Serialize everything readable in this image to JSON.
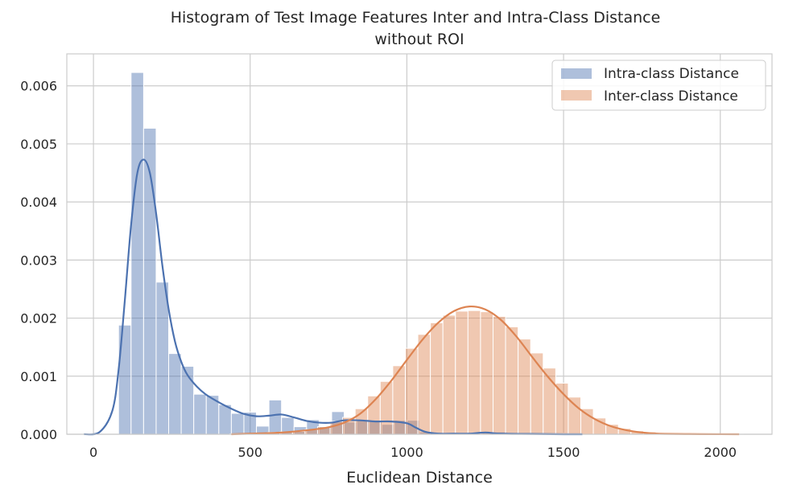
{
  "chart_data": {
    "type": "histogram",
    "title": "Histogram of Test Image Features Inter and Intra-Class Distance",
    "subtitle": "without ROI",
    "xlabel": "Euclidean Distance",
    "ylabel": "",
    "xlim": [
      -85,
      2165
    ],
    "ylim": [
      0,
      0.00655
    ],
    "x_ticks": [
      0,
      500,
      1000,
      1500,
      2000
    ],
    "x_tick_labels": [
      "0",
      "500",
      "1000",
      "1500",
      "2000"
    ],
    "y_ticks": [
      0.0,
      0.001,
      0.002,
      0.003,
      0.004,
      0.005,
      0.006
    ],
    "y_tick_labels": [
      "0.000",
      "0.001",
      "0.002",
      "0.003",
      "0.004",
      "0.005",
      "0.006"
    ],
    "grid": true,
    "legend_position": "top-right",
    "series": [
      {
        "name": "Intra-class Distance",
        "color": "#4c72b0",
        "bin_edges": [
          80,
          120,
          160,
          200,
          240,
          280,
          320,
          360,
          400,
          440,
          480,
          520,
          560,
          600,
          640,
          680,
          720,
          760,
          800,
          840,
          880,
          920,
          960,
          1000,
          1040,
          1080,
          1120,
          1160,
          1200,
          1240,
          1280,
          1320,
          1360,
          1400,
          1440,
          1480,
          1520,
          1560
        ],
        "density": [
          0.00188,
          0.00623,
          0.00527,
          0.00262,
          0.00139,
          0.00117,
          0.00069,
          0.00067,
          0.00051,
          0.00036,
          0.00038,
          0.00014,
          0.00059,
          0.00029,
          0.00013,
          0.00025,
          0.00013,
          0.00039,
          0.00021,
          0.00024,
          0.00024,
          0.00017,
          0.00024,
          0.00024,
          4e-05,
          3e-05,
          2e-05,
          2e-05,
          2e-05,
          2e-05,
          4e-05,
          2e-05,
          2e-05,
          1e-05,
          1e-05,
          2e-05,
          1e-05
        ],
        "kde": {
          "x": [
            -30,
            20,
            60,
            80,
            100,
            120,
            140,
            160,
            180,
            200,
            220,
            240,
            260,
            280,
            300,
            330,
            360,
            400,
            440,
            480,
            520,
            560,
            600,
            640,
            680,
            720,
            760,
            800,
            850,
            900,
            950,
            1000,
            1030,
            1060,
            1100,
            1150,
            1200,
            1250,
            1300,
            1400,
            1500,
            1560
          ],
          "y": [
            0.0,
            4e-05,
            0.0004,
            0.0011,
            0.0023,
            0.0036,
            0.0045,
            0.00473,
            0.0045,
            0.0038,
            0.0029,
            0.00215,
            0.0016,
            0.00125,
            0.00102,
            0.00082,
            0.00068,
            0.00055,
            0.00044,
            0.00035,
            0.00031,
            0.00032,
            0.00034,
            0.00029,
            0.00023,
            0.0002,
            0.0002,
            0.00024,
            0.00024,
            0.00022,
            0.00022,
            0.00019,
            0.00011,
            4e-05,
            1e-05,
            1e-05,
            1e-05,
            3e-05,
            1e-05,
            5e-06,
            0.0,
            0.0
          ]
        }
      },
      {
        "name": "Inter-class Distance",
        "color": "#dd8452",
        "bin_edges": [
          435,
          475,
          515,
          555,
          595,
          635,
          675,
          715,
          755,
          795,
          835,
          875,
          915,
          955,
          995,
          1035,
          1075,
          1115,
          1155,
          1195,
          1235,
          1275,
          1315,
          1355,
          1395,
          1435,
          1475,
          1515,
          1555,
          1595,
          1635,
          1675,
          1715,
          1755,
          1795,
          1835,
          1875,
          1915,
          1955,
          1995,
          2035,
          2075
        ],
        "density": [
          5e-06,
          1e-05,
          2e-05,
          3e-05,
          4e-05,
          5e-05,
          8e-05,
          0.00013,
          0.00022,
          0.00029,
          0.00044,
          0.00066,
          0.00091,
          0.00118,
          0.00148,
          0.00172,
          0.00192,
          0.00205,
          0.00212,
          0.00213,
          0.00211,
          0.00203,
          0.00185,
          0.00164,
          0.0014,
          0.00114,
          0.00088,
          0.00064,
          0.00044,
          0.00028,
          0.00017,
          0.0001,
          6e-05,
          4e-05,
          2e-05,
          1e-05,
          7e-06,
          5e-06,
          3e-06,
          2e-06,
          1e-06
        ],
        "kde": {
          "x": [
            440,
            500,
            600,
            700,
            750,
            800,
            850,
            900,
            950,
            1000,
            1050,
            1100,
            1150,
            1200,
            1250,
            1300,
            1350,
            1400,
            1450,
            1500,
            1550,
            1600,
            1650,
            1700,
            1750,
            1800,
            1900,
            2000,
            2060
          ],
          "y": [
            0.0,
            1e-05,
            3e-05,
            8e-05,
            0.00012,
            0.0002,
            0.00035,
            0.0006,
            0.00092,
            0.00128,
            0.00163,
            0.00192,
            0.00212,
            0.0022,
            0.00215,
            0.00197,
            0.00168,
            0.00133,
            0.00099,
            0.00069,
            0.00044,
            0.00026,
            0.00014,
            7e-05,
            3e-05,
            1e-05,
            3e-06,
            1e-06,
            0.0
          ]
        }
      }
    ]
  }
}
